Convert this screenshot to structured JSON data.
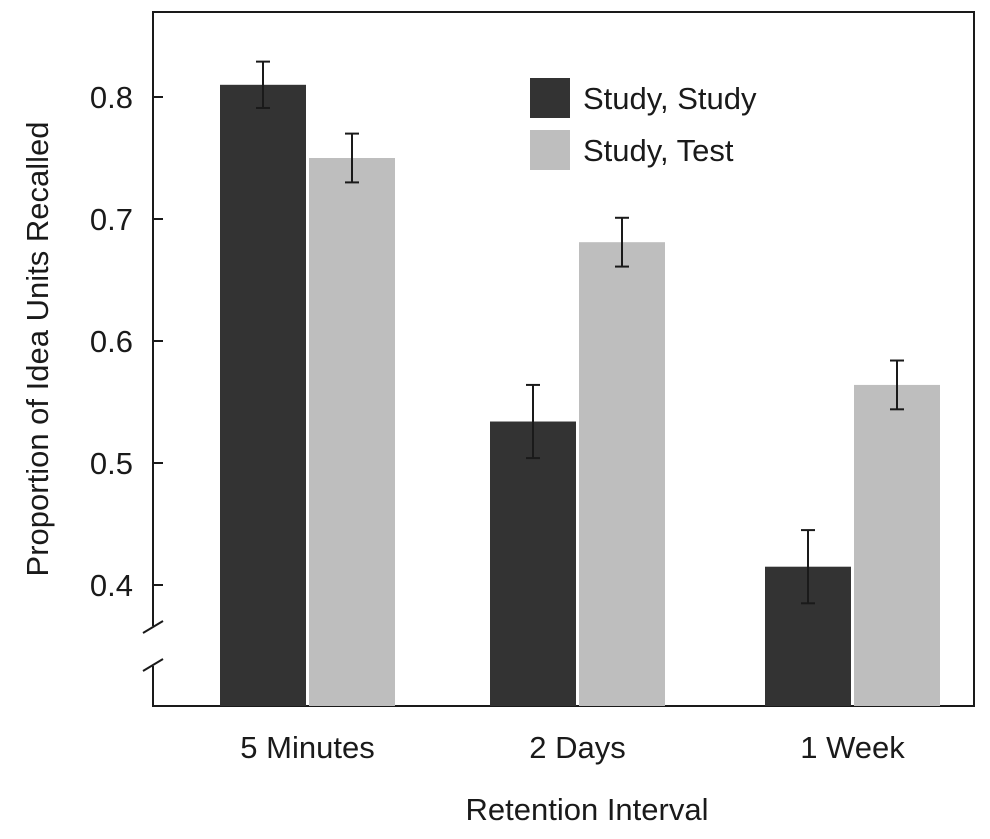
{
  "chart_data": {
    "type": "bar",
    "title": "",
    "xlabel": "Retention Interval",
    "ylabel": "Proportion of Idea Units Recalled",
    "categories": [
      "5 Minutes",
      "2 Days",
      "1 Week"
    ],
    "ylim": [
      0.35,
      0.87
    ],
    "yticks": [
      "0.4",
      "0.5",
      "0.6",
      "0.7",
      "0.8"
    ],
    "axis_break": true,
    "grid": false,
    "legend_position": "top-right",
    "series": [
      {
        "name": "Study, Study",
        "color": "#333333",
        "values": [
          0.81,
          0.534,
          0.415
        ],
        "error": [
          0.019,
          0.03,
          0.03
        ]
      },
      {
        "name": "Study, Test",
        "color": "#bebebe",
        "values": [
          0.75,
          0.681,
          0.564
        ],
        "error": [
          0.02,
          0.02,
          0.02
        ]
      }
    ]
  }
}
